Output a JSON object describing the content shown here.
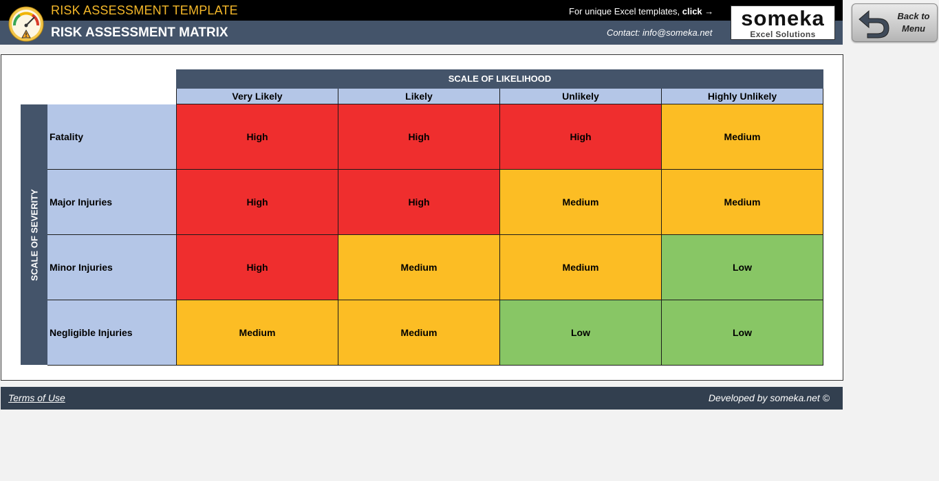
{
  "header": {
    "app_title": "RISK ASSESSMENT TEMPLATE",
    "page_title": "RISK ASSESSMENT MATRIX",
    "promo_text": "For unique Excel templates, ",
    "promo_click": "click →",
    "contact": "Contact: info@someka.net",
    "brand_name": "someka",
    "brand_sub": "Excel Solutions",
    "back_button": "Back to Menu"
  },
  "matrix": {
    "likelihood_title": "SCALE OF LIKELIHOOD",
    "severity_title": "SCALE OF SEVERITY",
    "columns": [
      "Very Likely",
      "Likely",
      "Unlikely",
      "Highly Unlikely"
    ],
    "rows": [
      {
        "label": "Fatality",
        "cells": [
          "High",
          "High",
          "High",
          "Medium"
        ]
      },
      {
        "label": "Major Injuries",
        "cells": [
          "High",
          "High",
          "Medium",
          "Medium"
        ]
      },
      {
        "label": "Minor Injuries",
        "cells": [
          "High",
          "Medium",
          "Medium",
          "Low"
        ]
      },
      {
        "label": "Negligible Injuries",
        "cells": [
          "Medium",
          "Medium",
          "Low",
          "Low"
        ]
      }
    ]
  },
  "colors": {
    "high": "#ef2e2e",
    "medium": "#fcbd24",
    "low": "#88c665",
    "header_accent": "#f5b829",
    "header_bg": "#44546a"
  },
  "footer": {
    "terms": "Terms of Use",
    "developed": "Developed by someka.net ©"
  }
}
